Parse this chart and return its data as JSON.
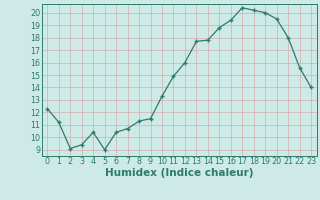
{
  "x": [
    0,
    1,
    2,
    3,
    4,
    5,
    6,
    7,
    8,
    9,
    10,
    11,
    12,
    13,
    14,
    15,
    16,
    17,
    18,
    19,
    20,
    21,
    22,
    23
  ],
  "y": [
    12.3,
    11.2,
    9.1,
    9.4,
    10.4,
    9.0,
    10.4,
    10.7,
    11.3,
    11.5,
    13.3,
    14.9,
    16.0,
    17.7,
    17.8,
    18.8,
    19.4,
    20.4,
    20.2,
    20.0,
    19.5,
    18.0,
    15.6,
    14.0
  ],
  "xlabel": "Humidex (Indice chaleur)",
  "xlim": [
    -0.5,
    23.5
  ],
  "ylim": [
    8.5,
    20.7
  ],
  "yticks": [
    9,
    10,
    11,
    12,
    13,
    14,
    15,
    16,
    17,
    18,
    19,
    20
  ],
  "xticks": [
    0,
    1,
    2,
    3,
    4,
    5,
    6,
    7,
    8,
    9,
    10,
    11,
    12,
    13,
    14,
    15,
    16,
    17,
    18,
    19,
    20,
    21,
    22,
    23
  ],
  "line_color": "#2d7b6b",
  "marker_color": "#2d7b6b",
  "bg_color": "#ceeae7",
  "grid_color_minor": "#c5e3e0",
  "grid_color_major": "#b8d8d4",
  "tick_label_fontsize": 5.8,
  "xlabel_fontsize": 7.5
}
